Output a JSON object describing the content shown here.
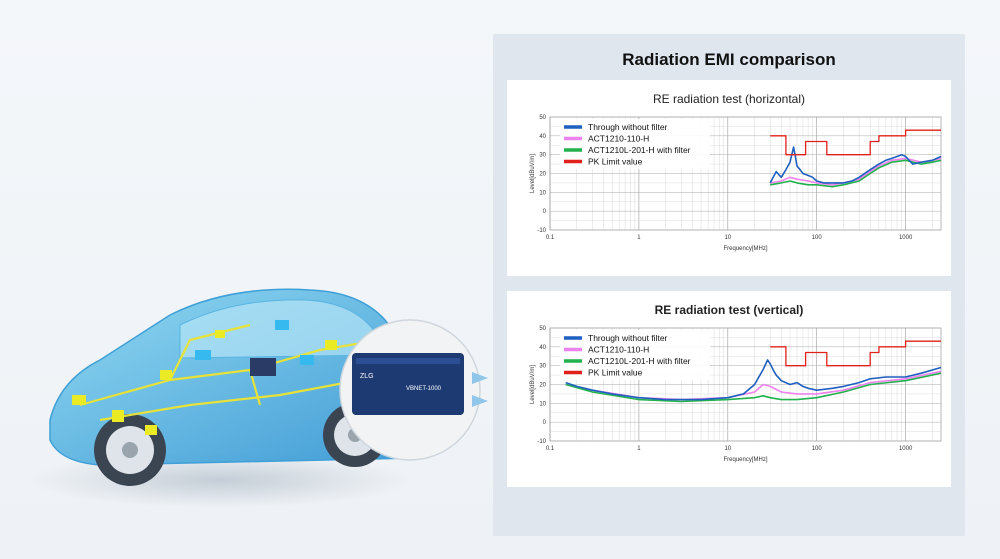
{
  "panel": {
    "title": "Radiation EMI comparison"
  },
  "device": {
    "brand": "ZLG",
    "model": "VBNET-1000"
  },
  "colors": {
    "through": "#1f5fbf",
    "act1210": "#ee82ee",
    "act1210l": "#22b14c",
    "limit": "#e0201b",
    "panel_bg": "#dfe6ee"
  },
  "chart_data": [
    {
      "type": "line",
      "title": "RE radiation test (horizontal)",
      "xlabel": "Frequency[MHz]",
      "ylabel": "Level[dBuV/m]",
      "x_scale": "log",
      "xlim": [
        0.1,
        2500
      ],
      "ylim": [
        -10,
        50
      ],
      "x_ticks": [
        "0.1",
        "1",
        "10",
        "100",
        "1000"
      ],
      "y_ticks": [
        "50",
        "40",
        "30",
        "20",
        "10",
        "0",
        "-10"
      ],
      "grid": true,
      "legend_position": "top-left",
      "series": [
        {
          "name": "Through without filter",
          "color": "#1f5fbf",
          "x": [
            30,
            35,
            40,
            45,
            50,
            55,
            58,
            60,
            65,
            70,
            80,
            90,
            100,
            120,
            150,
            200,
            250,
            300,
            400,
            500,
            600,
            700,
            800,
            900,
            1000,
            1200,
            1500,
            2000,
            2500
          ],
          "y": [
            15,
            21,
            18,
            22,
            26,
            34,
            28,
            24,
            22,
            20,
            19,
            18,
            16,
            15,
            15,
            15,
            16,
            18,
            22,
            25,
            27,
            28,
            29,
            30,
            29,
            25,
            26,
            27,
            29
          ]
        },
        {
          "name": "ACT1210-110-H",
          "color": "#ee82ee",
          "x": [
            30,
            40,
            50,
            60,
            80,
            100,
            150,
            200,
            300,
            400,
            500,
            700,
            1000,
            1500,
            2000,
            2500
          ],
          "y": [
            15,
            16,
            18,
            17,
            16,
            15,
            14,
            15,
            17,
            21,
            24,
            27,
            28,
            26,
            27,
            28
          ]
        },
        {
          "name": "ACT1210L-201-H with filter",
          "color": "#22b14c",
          "x": [
            30,
            40,
            50,
            60,
            80,
            100,
            150,
            200,
            300,
            400,
            500,
            700,
            1000,
            1500,
            2000,
            2500
          ],
          "y": [
            14,
            15,
            16,
            15,
            14,
            14,
            13,
            14,
            16,
            20,
            23,
            26,
            27,
            25,
            26,
            27
          ]
        },
        {
          "name": "PK Limit value",
          "color": "#e0201b",
          "x": [
            30,
            45,
            45,
            75,
            75,
            130,
            130,
            400,
            400,
            500,
            500,
            1000,
            1000,
            2500
          ],
          "y": [
            40,
            40,
            30,
            30,
            37,
            37,
            30,
            30,
            37,
            37,
            40,
            40,
            43,
            43
          ]
        }
      ]
    },
    {
      "type": "line",
      "title": "RE radiation test (vertical)",
      "xlabel": "Frequency[MHz]",
      "ylabel": "Level[dBuV/m]",
      "x_scale": "log",
      "xlim": [
        0.1,
        2500
      ],
      "ylim": [
        -10,
        50
      ],
      "x_ticks": [
        "0.1",
        "1",
        "10",
        "100",
        "1000"
      ],
      "y_ticks": [
        "50",
        "40",
        "30",
        "20",
        "10",
        "0",
        "-10"
      ],
      "grid": true,
      "legend_position": "top-left",
      "series": [
        {
          "name": "Through without filter",
          "color": "#1f5fbf",
          "x": [
            0.15,
            0.2,
            0.3,
            0.5,
            1,
            2,
            5,
            10,
            15,
            20,
            25,
            28,
            30,
            33,
            35,
            40,
            50,
            60,
            70,
            80,
            100,
            150,
            200,
            300,
            400,
            600,
            1000,
            1500,
            2500
          ],
          "y": [
            21,
            19,
            17,
            15,
            13,
            12,
            12,
            13,
            15,
            20,
            28,
            33,
            31,
            27,
            25,
            22,
            20,
            21,
            19,
            18,
            17,
            18,
            19,
            21,
            23,
            24,
            24,
            26,
            29
          ]
        },
        {
          "name": "ACT1210-110-H",
          "color": "#ee82ee",
          "x": [
            0.15,
            0.3,
            1,
            3,
            10,
            20,
            25,
            30,
            40,
            60,
            100,
            200,
            400,
            1000,
            2500
          ],
          "y": [
            20,
            17,
            13,
            12,
            13,
            16,
            20,
            19,
            16,
            15,
            15,
            17,
            21,
            23,
            27
          ]
        },
        {
          "name": "ACT1210L-201-H with filter",
          "color": "#22b14c",
          "x": [
            0.15,
            0.3,
            1,
            3,
            10,
            20,
            25,
            30,
            40,
            60,
            100,
            200,
            400,
            1000,
            2500
          ],
          "y": [
            20,
            16,
            12,
            11,
            12,
            13,
            14,
            13,
            12,
            12,
            13,
            16,
            20,
            22,
            26
          ]
        },
        {
          "name": "PK Limit value",
          "color": "#e0201b",
          "x": [
            30,
            45,
            45,
            75,
            75,
            130,
            130,
            400,
            400,
            500,
            500,
            1000,
            1000,
            2500
          ],
          "y": [
            40,
            40,
            30,
            30,
            37,
            37,
            30,
            30,
            37,
            37,
            40,
            40,
            43,
            43
          ]
        }
      ]
    }
  ]
}
